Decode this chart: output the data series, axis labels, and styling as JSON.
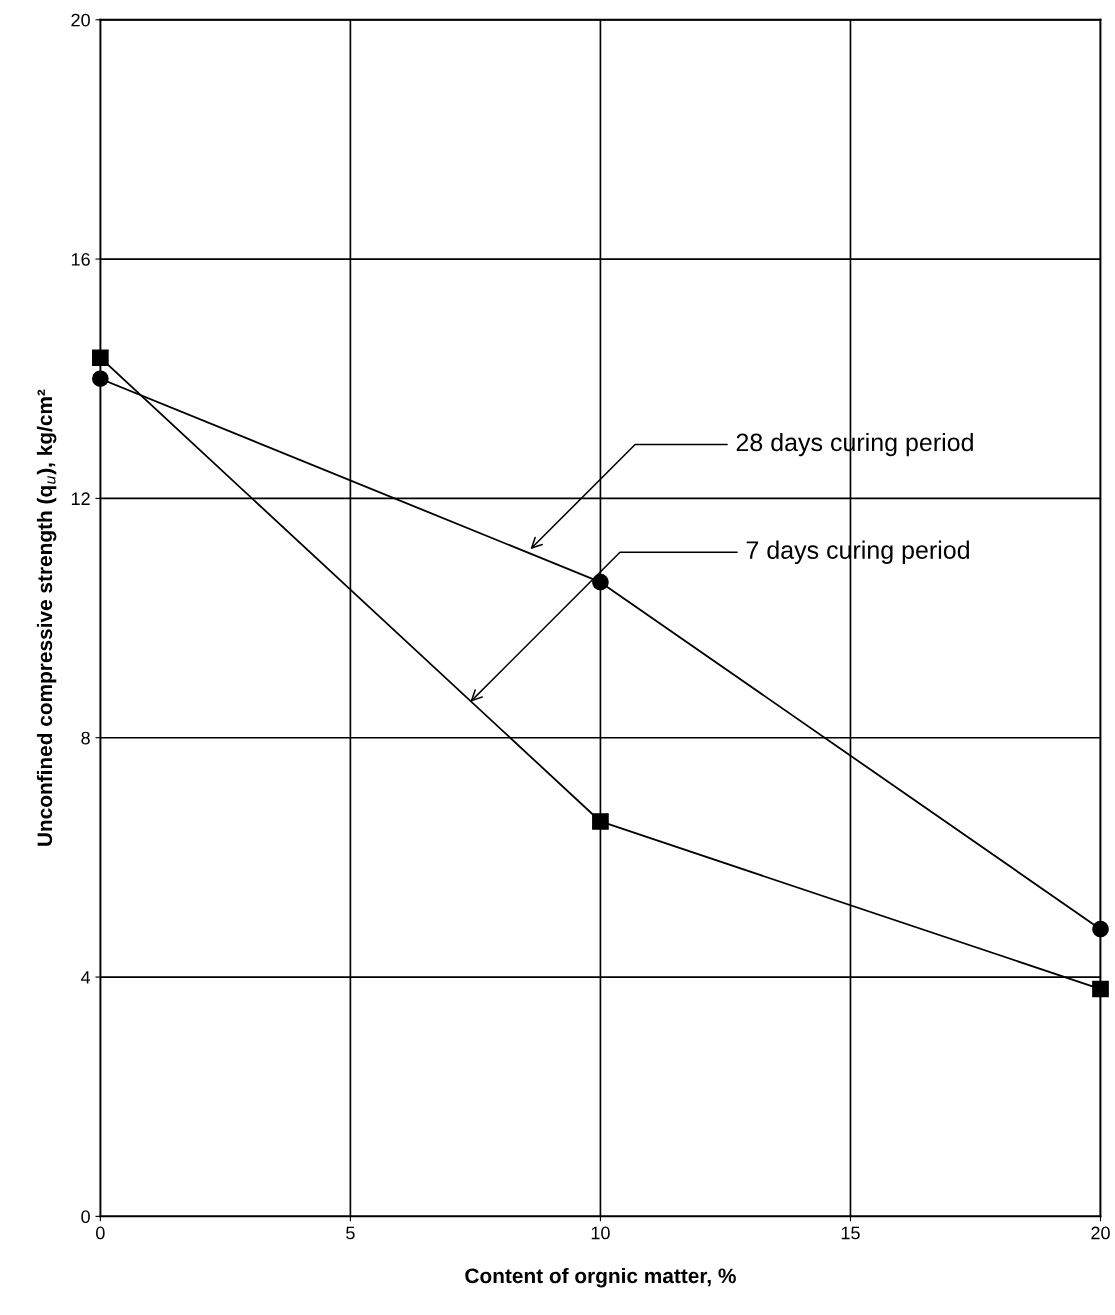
{
  "chart_data": {
    "type": "line",
    "xlabel": "Content of orgnic matter, %",
    "ylabel": "Unconfined compressive strength (q$_{u}$), kg/cm²",
    "x": [
      0,
      10,
      20
    ],
    "series": [
      {
        "color": "#000000",
        "marker": "circle",
        "values": [
          14.0,
          10.6,
          4.8
        ]
      },
      {
        "color": "#000000",
        "marker": "square",
        "values": [
          14.35,
          6.6,
          3.8
        ]
      }
    ],
    "xlim": [
      0,
      20
    ],
    "xticks": [
      0,
      5,
      10,
      15,
      20
    ],
    "ylim": [
      0,
      20
    ],
    "yticks": [
      0,
      4,
      8,
      12,
      16,
      20
    ],
    "grid": true,
    "line_style": "solid",
    "annotations": [
      {
        "text": "28 days curing period",
        "x": 8.6,
        "y": 11.15
      },
      {
        "text": "7 days curing period",
        "x": 7.4,
        "y": 8.6
      }
    ]
  }
}
